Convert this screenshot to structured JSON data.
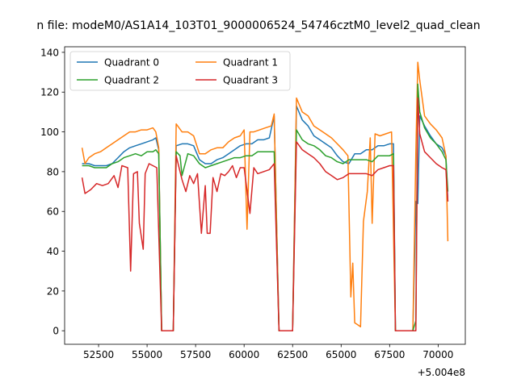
{
  "figure": {
    "title": "n file: modeM0/AS1A14_103T01_9000006524_54746cztM0_level2_quad_clean"
  },
  "chart_data": {
    "type": "line",
    "title": "n file: modeM0/AS1A14_103T01_9000006524_54746cztM0_level2_quad_clean",
    "xlabel": "",
    "ylabel": "",
    "x_offset_label": "+5.004e8",
    "xlim": [
      50750,
      71400
    ],
    "ylim": [
      -6.8,
      142.8
    ],
    "xticks": [
      52500,
      55000,
      57500,
      60000,
      62500,
      65000,
      67500,
      70000
    ],
    "yticks": [
      0,
      20,
      40,
      60,
      80,
      100,
      120,
      140
    ],
    "grid": false,
    "legend_position": "upper-left",
    "legend_columns": 2,
    "colors": {
      "Quadrant 0": "#1f77b4",
      "Quadrant 1": "#ff7f0e",
      "Quadrant 2": "#2ca02c",
      "Quadrant 3": "#d62728"
    },
    "series": [
      {
        "name": "Quadrant 0",
        "points": [
          [
            51650,
            84
          ],
          [
            52000,
            84
          ],
          [
            52300,
            83
          ],
          [
            52600,
            83
          ],
          [
            52900,
            83
          ],
          [
            53200,
            84
          ],
          [
            53500,
            87
          ],
          [
            53800,
            90
          ],
          [
            54100,
            92
          ],
          [
            54400,
            93
          ],
          [
            54700,
            94
          ],
          [
            55000,
            95
          ],
          [
            55300,
            96
          ],
          [
            55450,
            97
          ],
          [
            55600,
            91
          ],
          [
            55750,
            0
          ],
          [
            56350,
            0
          ],
          [
            56500,
            93
          ],
          [
            56800,
            94
          ],
          [
            57100,
            94
          ],
          [
            57400,
            93
          ],
          [
            57700,
            86
          ],
          [
            58000,
            84
          ],
          [
            58300,
            84
          ],
          [
            58600,
            86
          ],
          [
            58900,
            87
          ],
          [
            59200,
            89
          ],
          [
            59500,
            91
          ],
          [
            59800,
            93
          ],
          [
            60100,
            94
          ],
          [
            60400,
            94
          ],
          [
            60700,
            96
          ],
          [
            61000,
            96
          ],
          [
            61300,
            97
          ],
          [
            61550,
            108
          ],
          [
            61800,
            0
          ],
          [
            62500,
            0
          ],
          [
            62700,
            113
          ],
          [
            63000,
            106
          ],
          [
            63300,
            103
          ],
          [
            63600,
            98
          ],
          [
            63900,
            96
          ],
          [
            64200,
            94
          ],
          [
            64500,
            92
          ],
          [
            64800,
            88
          ],
          [
            65100,
            85
          ],
          [
            65400,
            84
          ],
          [
            65700,
            89
          ],
          [
            66000,
            89
          ],
          [
            66300,
            91
          ],
          [
            66600,
            91
          ],
          [
            66900,
            93
          ],
          [
            67200,
            93
          ],
          [
            67500,
            94
          ],
          [
            67700,
            94
          ],
          [
            67800,
            0
          ],
          [
            68700,
            0
          ],
          [
            68850,
            65
          ],
          [
            68950,
            64
          ],
          [
            69050,
            108
          ],
          [
            69300,
            103
          ],
          [
            69600,
            98
          ],
          [
            69900,
            94
          ],
          [
            70200,
            92
          ],
          [
            70400,
            88
          ],
          [
            70500,
            65
          ]
        ]
      },
      {
        "name": "Quadrant 1",
        "points": [
          [
            51650,
            92
          ],
          [
            51800,
            84
          ],
          [
            52000,
            87
          ],
          [
            52300,
            89
          ],
          [
            52600,
            90
          ],
          [
            52900,
            92
          ],
          [
            53200,
            94
          ],
          [
            53500,
            96
          ],
          [
            53800,
            98
          ],
          [
            54100,
            100
          ],
          [
            54400,
            100
          ],
          [
            54700,
            101
          ],
          [
            55000,
            101
          ],
          [
            55300,
            102
          ],
          [
            55450,
            100
          ],
          [
            55600,
            92
          ],
          [
            55750,
            0
          ],
          [
            56350,
            0
          ],
          [
            56500,
            104
          ],
          [
            56800,
            100
          ],
          [
            57100,
            100
          ],
          [
            57400,
            98
          ],
          [
            57700,
            89
          ],
          [
            58000,
            89
          ],
          [
            58300,
            91
          ],
          [
            58600,
            92
          ],
          [
            58900,
            92
          ],
          [
            59200,
            95
          ],
          [
            59500,
            97
          ],
          [
            59800,
            98
          ],
          [
            60000,
            101
          ],
          [
            60150,
            51
          ],
          [
            60300,
            100
          ],
          [
            60500,
            100
          ],
          [
            60800,
            101
          ],
          [
            61100,
            102
          ],
          [
            61400,
            103
          ],
          [
            61550,
            109
          ],
          [
            61800,
            0
          ],
          [
            62500,
            0
          ],
          [
            62700,
            117
          ],
          [
            63000,
            110
          ],
          [
            63300,
            108
          ],
          [
            63600,
            103
          ],
          [
            63900,
            101
          ],
          [
            64200,
            99
          ],
          [
            64500,
            97
          ],
          [
            64800,
            94
          ],
          [
            65100,
            91
          ],
          [
            65350,
            88
          ],
          [
            65500,
            17
          ],
          [
            65600,
            34
          ],
          [
            65700,
            4
          ],
          [
            65850,
            3
          ],
          [
            66000,
            2
          ],
          [
            66150,
            55
          ],
          [
            66350,
            70
          ],
          [
            66500,
            97
          ],
          [
            66600,
            54
          ],
          [
            66750,
            99
          ],
          [
            67000,
            98
          ],
          [
            67300,
            99
          ],
          [
            67600,
            100
          ],
          [
            67800,
            0
          ],
          [
            68700,
            0
          ],
          [
            68850,
            90
          ],
          [
            68950,
            135
          ],
          [
            69050,
            126
          ],
          [
            69300,
            108
          ],
          [
            69600,
            104
          ],
          [
            69900,
            101
          ],
          [
            70200,
            97
          ],
          [
            70400,
            88
          ],
          [
            70500,
            45
          ]
        ]
      },
      {
        "name": "Quadrant 2",
        "points": [
          [
            51650,
            83
          ],
          [
            52000,
            83
          ],
          [
            52300,
            82
          ],
          [
            52600,
            82
          ],
          [
            52900,
            82
          ],
          [
            53200,
            84
          ],
          [
            53500,
            85
          ],
          [
            53800,
            87
          ],
          [
            54100,
            88
          ],
          [
            54400,
            89
          ],
          [
            54700,
            88
          ],
          [
            55000,
            90
          ],
          [
            55300,
            90
          ],
          [
            55450,
            91
          ],
          [
            55600,
            89
          ],
          [
            55750,
            0
          ],
          [
            56350,
            0
          ],
          [
            56500,
            90
          ],
          [
            56700,
            88
          ],
          [
            56800,
            78
          ],
          [
            57100,
            89
          ],
          [
            57400,
            88
          ],
          [
            57700,
            84
          ],
          [
            58000,
            82
          ],
          [
            58300,
            83
          ],
          [
            58600,
            84
          ],
          [
            58900,
            85
          ],
          [
            59200,
            86
          ],
          [
            59500,
            87
          ],
          [
            59800,
            87
          ],
          [
            60100,
            88
          ],
          [
            60400,
            88
          ],
          [
            60700,
            90
          ],
          [
            61000,
            90
          ],
          [
            61300,
            90
          ],
          [
            61550,
            90
          ],
          [
            61800,
            0
          ],
          [
            62500,
            0
          ],
          [
            62700,
            101
          ],
          [
            63000,
            96
          ],
          [
            63300,
            94
          ],
          [
            63600,
            93
          ],
          [
            63900,
            91
          ],
          [
            64200,
            88
          ],
          [
            64500,
            87
          ],
          [
            64800,
            85
          ],
          [
            65100,
            84
          ],
          [
            65400,
            86
          ],
          [
            65700,
            86
          ],
          [
            66000,
            86
          ],
          [
            66300,
            86
          ],
          [
            66600,
            85
          ],
          [
            66900,
            88
          ],
          [
            67200,
            88
          ],
          [
            67500,
            88
          ],
          [
            67700,
            89
          ],
          [
            67800,
            0
          ],
          [
            68700,
            0
          ],
          [
            68850,
            5
          ],
          [
            68950,
            124
          ],
          [
            69050,
            110
          ],
          [
            69300,
            102
          ],
          [
            69600,
            97
          ],
          [
            69900,
            94
          ],
          [
            70200,
            90
          ],
          [
            70400,
            86
          ],
          [
            70500,
            70
          ]
        ]
      },
      {
        "name": "Quadrant 3",
        "points": [
          [
            51650,
            77
          ],
          [
            51800,
            69
          ],
          [
            52100,
            71
          ],
          [
            52400,
            74
          ],
          [
            52700,
            73
          ],
          [
            53000,
            74
          ],
          [
            53300,
            78
          ],
          [
            53500,
            72
          ],
          [
            53700,
            83
          ],
          [
            54000,
            82
          ],
          [
            54150,
            30
          ],
          [
            54300,
            79
          ],
          [
            54500,
            80
          ],
          [
            54600,
            54
          ],
          [
            54800,
            41
          ],
          [
            54900,
            79
          ],
          [
            55100,
            84
          ],
          [
            55300,
            83
          ],
          [
            55500,
            82
          ],
          [
            55750,
            0
          ],
          [
            56350,
            0
          ],
          [
            56500,
            88
          ],
          [
            56800,
            76
          ],
          [
            57000,
            70
          ],
          [
            57200,
            78
          ],
          [
            57400,
            74
          ],
          [
            57600,
            79
          ],
          [
            57800,
            49
          ],
          [
            58000,
            73
          ],
          [
            58100,
            49
          ],
          [
            58250,
            49
          ],
          [
            58400,
            77
          ],
          [
            58600,
            70
          ],
          [
            58800,
            79
          ],
          [
            59000,
            78
          ],
          [
            59200,
            80
          ],
          [
            59400,
            83
          ],
          [
            59600,
            77
          ],
          [
            59800,
            82
          ],
          [
            60000,
            82
          ],
          [
            60300,
            59
          ],
          [
            60500,
            82
          ],
          [
            60700,
            79
          ],
          [
            61000,
            80
          ],
          [
            61300,
            81
          ],
          [
            61550,
            84
          ],
          [
            61800,
            0
          ],
          [
            62500,
            0
          ],
          [
            62700,
            95
          ],
          [
            63000,
            91
          ],
          [
            63300,
            89
          ],
          [
            63600,
            87
          ],
          [
            63900,
            84
          ],
          [
            64200,
            80
          ],
          [
            64500,
            78
          ],
          [
            64800,
            76
          ],
          [
            65100,
            77
          ],
          [
            65400,
            79
          ],
          [
            65700,
            79
          ],
          [
            66000,
            79
          ],
          [
            66300,
            79
          ],
          [
            66600,
            78
          ],
          [
            66900,
            81
          ],
          [
            67200,
            82
          ],
          [
            67500,
            83
          ],
          [
            67700,
            83
          ],
          [
            67800,
            0
          ],
          [
            68700,
            0
          ],
          [
            68850,
            0
          ],
          [
            68950,
            117
          ],
          [
            69050,
            99
          ],
          [
            69300,
            90
          ],
          [
            69600,
            87
          ],
          [
            69900,
            84
          ],
          [
            70200,
            82
          ],
          [
            70400,
            81
          ],
          [
            70500,
            65
          ]
        ]
      }
    ]
  }
}
